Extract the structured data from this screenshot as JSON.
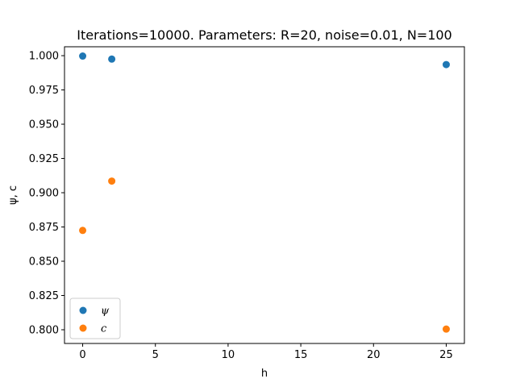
{
  "chart_data": {
    "type": "scatter",
    "title": "Iterations=10000. Parameters: R=20, noise=0.01, N=100",
    "xlabel": "h",
    "ylabel": "ψ, c",
    "xlim": [
      -1.25,
      26.25
    ],
    "ylim": [
      0.79,
      1.0065
    ],
    "xticks": [
      0,
      5,
      10,
      15,
      20,
      25
    ],
    "yticks": [
      0.8,
      0.825,
      0.85,
      0.875,
      0.9,
      0.925,
      0.95,
      0.975,
      1.0
    ],
    "ytick_labels": [
      "0.800",
      "0.825",
      "0.850",
      "0.875",
      "0.900",
      "0.925",
      "0.950",
      "0.975",
      "1.000"
    ],
    "grid": false,
    "legend_position": "lower-left",
    "series": [
      {
        "name": "ψ",
        "color": "#1f77b4",
        "x": [
          0,
          2,
          25
        ],
        "y": [
          0.9997,
          0.9975,
          0.9935
        ]
      },
      {
        "name": "c",
        "color": "#ff7f0e",
        "x": [
          0,
          2,
          25
        ],
        "y": [
          0.8725,
          0.9085,
          0.8005
        ]
      }
    ]
  }
}
